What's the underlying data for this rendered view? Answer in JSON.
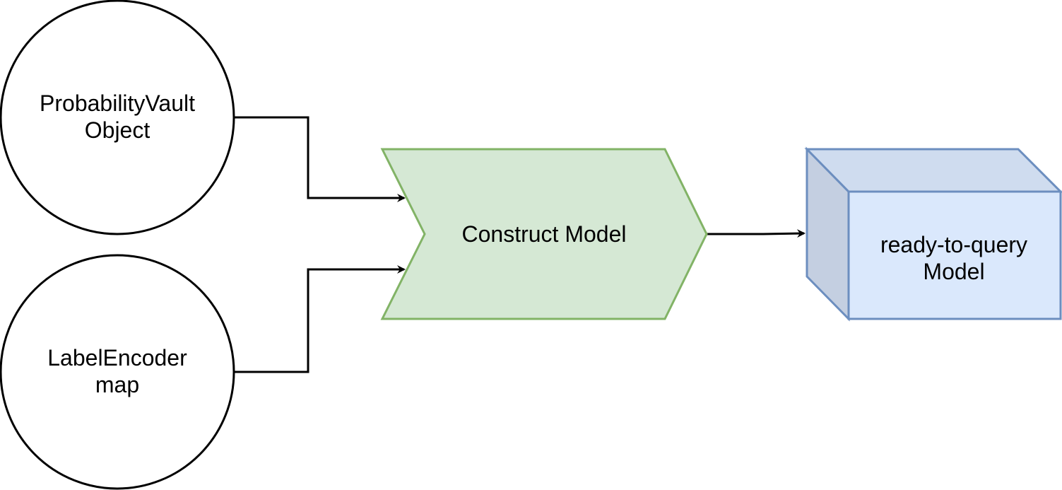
{
  "diagram": {
    "nodes": {
      "probability_vault": {
        "label": "ProbabilityVault\nObject",
        "shape": "circle",
        "fill": "#ffffff",
        "stroke": "#000000"
      },
      "label_encoder": {
        "label": "LabelEncoder\nmap",
        "shape": "circle",
        "fill": "#ffffff",
        "stroke": "#000000"
      },
      "construct_model": {
        "label": "Construct Model",
        "shape": "chevron",
        "fill": "#d5e8d4",
        "stroke": "#82b366"
      },
      "ready_model": {
        "label": "ready-to-query\nModel",
        "shape": "cube",
        "fill": "#dae8fc",
        "side_fill": "#c4cfe1",
        "top_fill": "#cfdcef",
        "stroke": "#6c8ebf"
      }
    },
    "edges": [
      {
        "from": "probability_vault",
        "to": "construct_model"
      },
      {
        "from": "label_encoder",
        "to": "construct_model"
      },
      {
        "from": "construct_model",
        "to": "ready_model"
      }
    ]
  }
}
